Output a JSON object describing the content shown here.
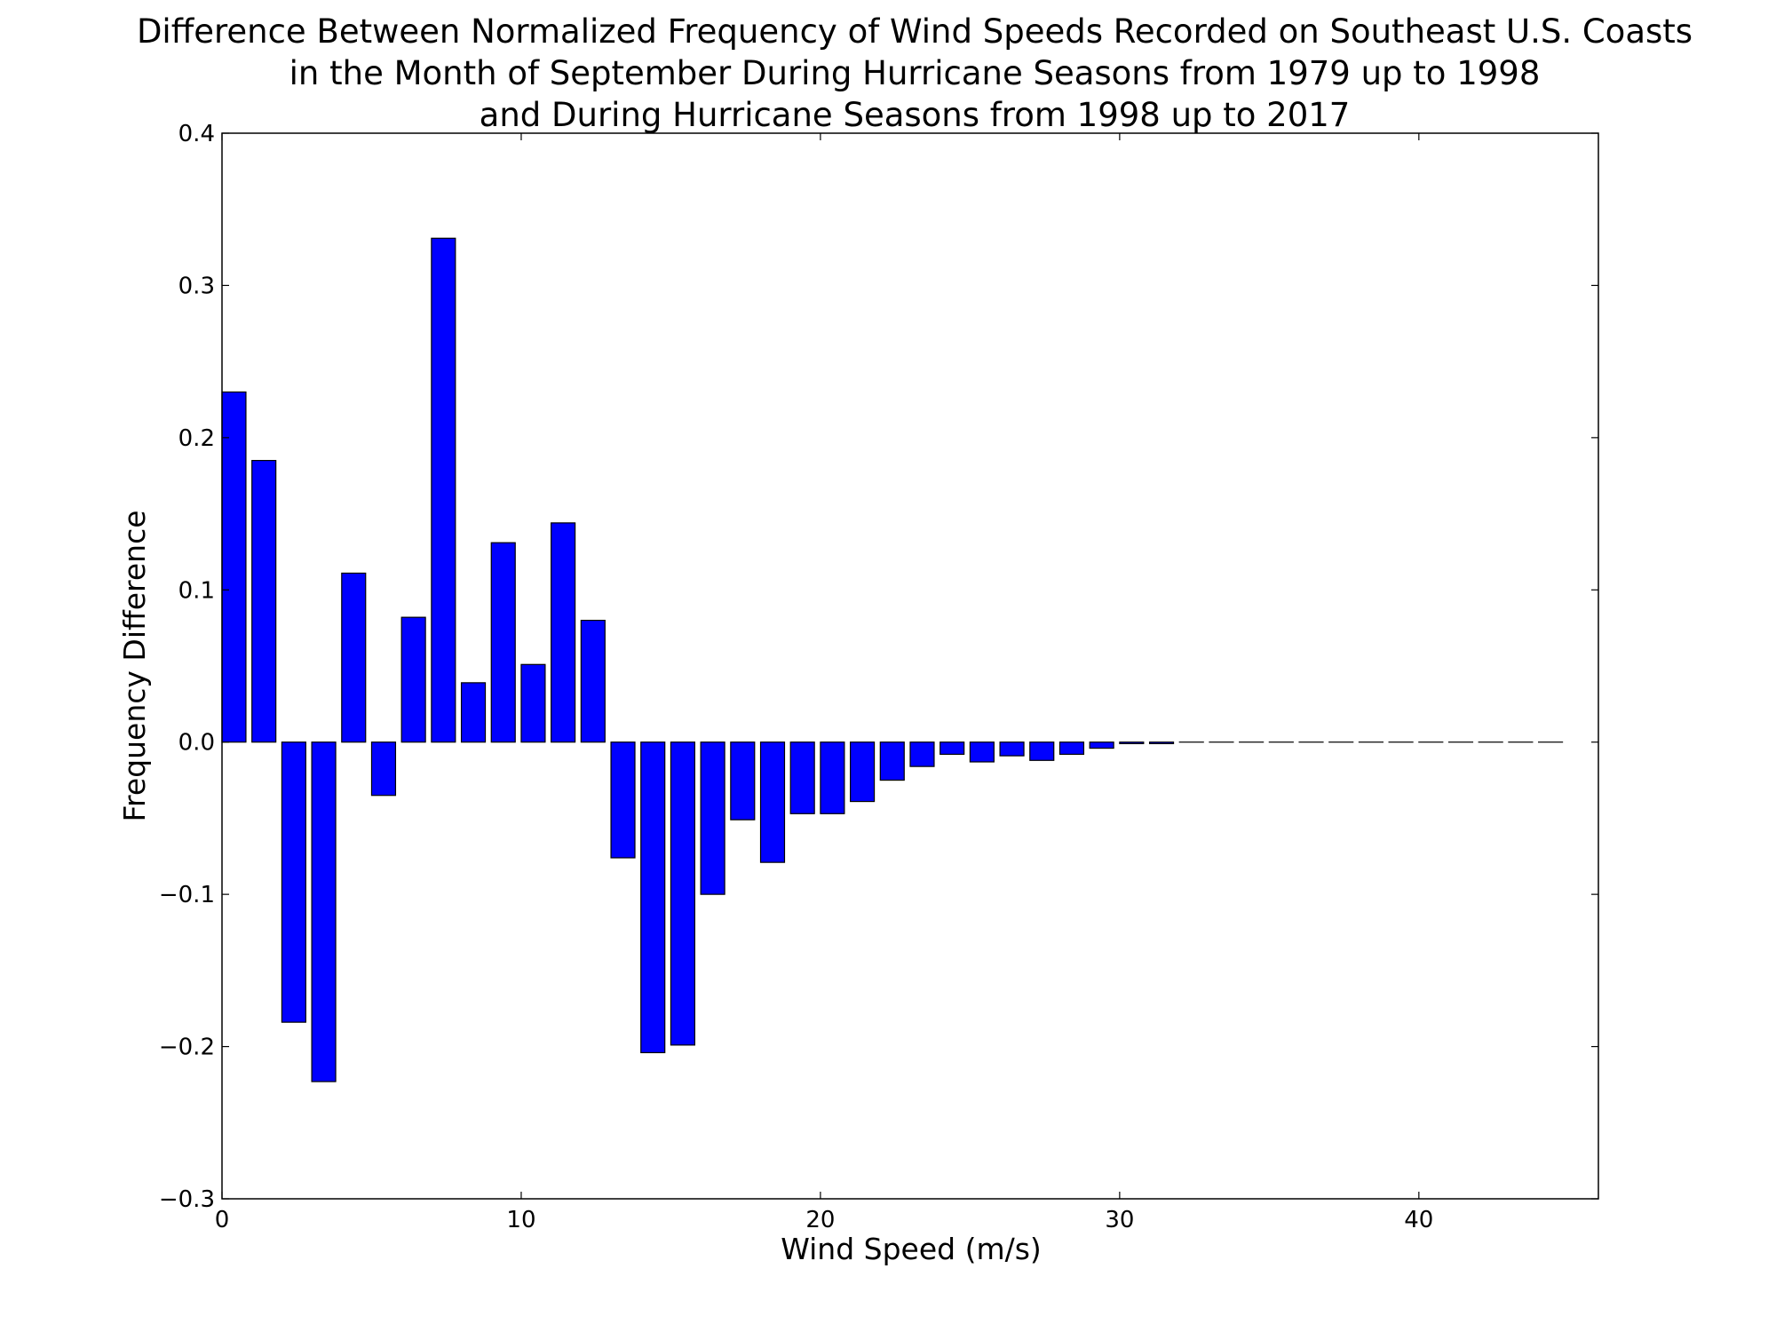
{
  "chart_data": {
    "type": "bar",
    "title_lines": [
      "Difference Between Normalized Frequency of Wind Speeds Recorded on Southeast U.S. Coasts",
      "in the Month of September During Hurricane Seasons from 1979 up to 1998",
      "and During Hurricane Seasons from 1998 up to 2017"
    ],
    "xlabel": "Wind Speed (m/s)",
    "ylabel": "Frequency Difference",
    "xlim": [
      0,
      46
    ],
    "ylim": [
      -0.3,
      0.4
    ],
    "xticks": [
      0,
      10,
      20,
      30,
      40
    ],
    "yticks": [
      -0.3,
      -0.2,
      -0.1,
      0.0,
      0.1,
      0.2,
      0.3,
      0.4
    ],
    "xtick_labels": [
      "0",
      "10",
      "20",
      "30",
      "40"
    ],
    "ytick_labels": [
      "−0.3",
      "−0.2",
      "−0.1",
      "0.0",
      "0.1",
      "0.2",
      "0.3",
      "0.4"
    ],
    "bar_width": 0.8,
    "grid": false,
    "bar_color": "#0000ff",
    "edge_color": "#000000",
    "x": [
      0,
      1,
      2,
      3,
      4,
      5,
      6,
      7,
      8,
      9,
      10,
      11,
      12,
      13,
      14,
      15,
      16,
      17,
      18,
      19,
      20,
      21,
      22,
      23,
      24,
      25,
      26,
      27,
      28,
      29,
      30,
      31,
      32,
      33,
      34,
      35,
      36,
      37,
      38,
      39,
      40,
      41,
      42,
      43,
      44
    ],
    "values": [
      0.23,
      0.185,
      -0.184,
      -0.223,
      0.111,
      -0.035,
      0.082,
      0.331,
      0.039,
      0.131,
      0.051,
      0.144,
      0.08,
      -0.076,
      -0.204,
      -0.199,
      -0.1,
      -0.051,
      -0.079,
      -0.047,
      -0.047,
      -0.039,
      -0.025,
      -0.016,
      -0.008,
      -0.013,
      -0.009,
      -0.012,
      -0.008,
      -0.004,
      -0.001,
      -0.001,
      0,
      0,
      0,
      0,
      0,
      0,
      0,
      0,
      0,
      0,
      0,
      0,
      0
    ]
  }
}
